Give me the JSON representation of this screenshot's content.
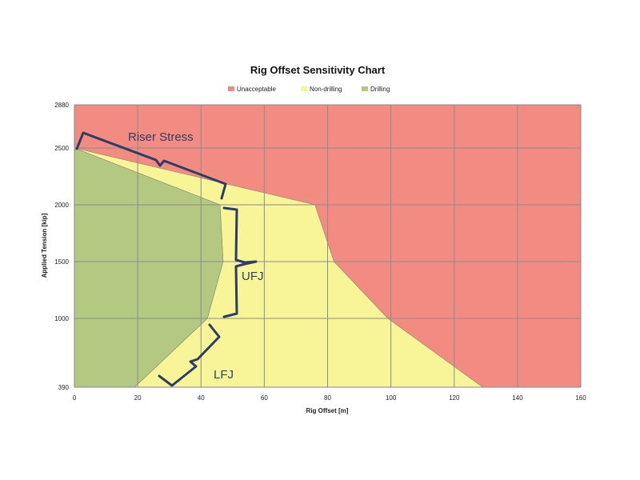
{
  "chart_data": {
    "type": "area",
    "title": "Rig Offset Sensitivity Chart",
    "xlabel": "Rig Offset [m]",
    "ylabel": "Applied Tension [kip]",
    "xlim": [
      0,
      160
    ],
    "xticks": [
      0,
      20,
      40,
      60,
      80,
      100,
      120,
      140,
      160
    ],
    "yticks": [
      390,
      1000,
      1500,
      2000,
      2500,
      2880
    ],
    "ylim": [
      390,
      2880
    ],
    "grid": true,
    "legend_position": "top",
    "series": [
      {
        "name": "Unacceptable",
        "color": "#f28b82",
        "points": [
          [
            0,
            390
          ],
          [
            160,
            390
          ],
          [
            160,
            2880
          ],
          [
            0,
            2880
          ]
        ]
      },
      {
        "name": "Non-drilling",
        "color": "#f7f598",
        "points": [
          [
            0,
            2500
          ],
          [
            76,
            2000
          ],
          [
            82,
            1500
          ],
          [
            99,
            1000
          ],
          [
            129,
            390
          ],
          [
            19,
            390
          ],
          [
            42,
            1000
          ],
          [
            47,
            1500
          ],
          [
            46,
            2000
          ]
        ]
      },
      {
        "name": "Drilling",
        "color": "#b3c881",
        "points": [
          [
            0,
            2500
          ],
          [
            46,
            2000
          ],
          [
            47,
            1500
          ],
          [
            42,
            1000
          ],
          [
            19,
            390
          ],
          [
            0,
            390
          ]
        ]
      }
    ],
    "annotations": [
      {
        "text": "Riser Stress"
      },
      {
        "text": "UFJ"
      },
      {
        "text": "LFJ"
      }
    ]
  }
}
